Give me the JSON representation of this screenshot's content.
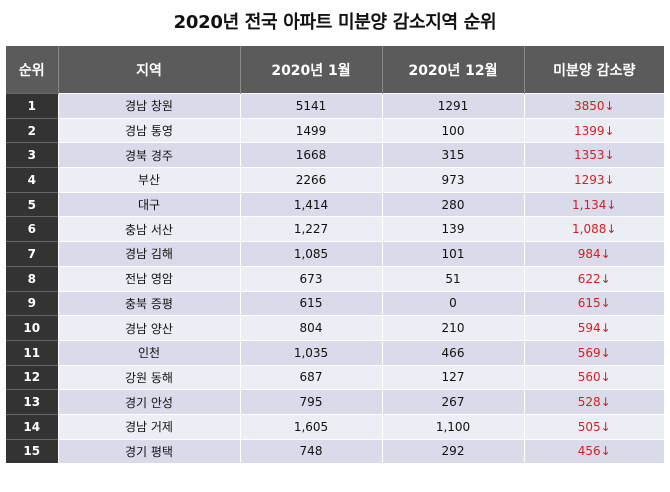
{
  "title": "2020년 전국 아파트 미분양 감소지역 순위",
  "headers": [
    "순위",
    "지역",
    "2020년 1월",
    "2020년 12월",
    "미분양 감소량"
  ],
  "rows": [
    {
      "rank": "1",
      "region": "경남 창원",
      "jan": "5141",
      "dec": "1291",
      "decrease": "3850↓"
    },
    {
      "rank": "2",
      "region": "경남 통영",
      "jan": "1499",
      "dec": "100",
      "decrease": "1399↓"
    },
    {
      "rank": "3",
      "region": "경북 경주",
      "jan": "1668",
      "dec": "315",
      "decrease": "1353↓"
    },
    {
      "rank": "4",
      "region": "부산",
      "jan": "2266",
      "dec": "973",
      "decrease": "1293↓"
    },
    {
      "rank": "5",
      "region": "대구",
      "jan": "1,414",
      "dec": "280",
      "decrease": "1,134↓"
    },
    {
      "rank": "6",
      "region": "충남 서산",
      "jan": "1,227",
      "dec": "139",
      "decrease": "1,088↓"
    },
    {
      "rank": "7",
      "region": "경남 김해",
      "jan": "1,085",
      "dec": "101",
      "decrease": "984↓"
    },
    {
      "rank": "8",
      "region": "전남 영암",
      "jan": "673",
      "dec": "51",
      "decrease": "622↓"
    },
    {
      "rank": "9",
      "region": "충북 증평",
      "jan": "615",
      "dec": "0",
      "decrease": "615↓"
    },
    {
      "rank": "10",
      "region": "경남 양산",
      "jan": "804",
      "dec": "210",
      "decrease": "594↓"
    },
    {
      "rank": "11",
      "region": "인천",
      "jan": "1,035",
      "dec": "466",
      "decrease": "569↓"
    },
    {
      "rank": "12",
      "region": "강원 동해",
      "jan": "687",
      "dec": "127",
      "decrease": "560↓"
    },
    {
      "rank": "13",
      "region": "경기 안성",
      "jan": "795",
      "dec": "267",
      "decrease": "528↓"
    },
    {
      "rank": "14",
      "region": "경남 거제",
      "jan": "1,605",
      "dec": "1,100",
      "decrease": "505↓"
    },
    {
      "rank": "15",
      "region": "경기 평택",
      "jan": "748",
      "dec": "292",
      "decrease": "456↓"
    }
  ],
  "colors": {
    "header_bg": "#5b5b5b",
    "rank_bg": "#333333",
    "row_odd": "#d9dbeb",
    "row_even": "#eceef5",
    "decrease_text": "#d42020"
  }
}
